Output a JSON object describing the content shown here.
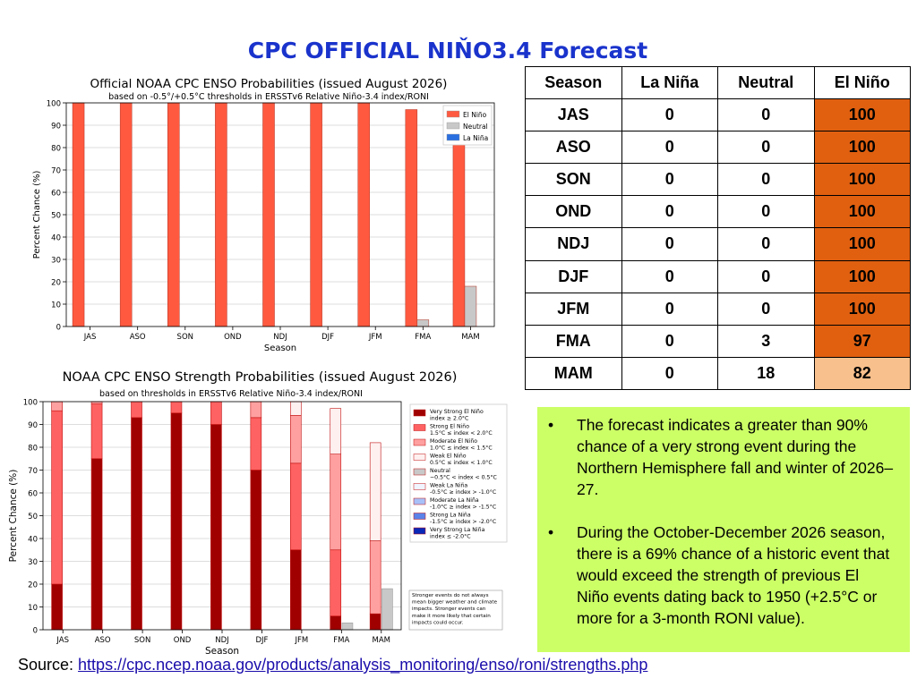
{
  "slide_title": "CPC OFFICIAL NIŇO3.4 Forecast",
  "colors": {
    "title": "#1a33cc",
    "el_nino": "#e06010",
    "el_nino_light": "#f8c08c",
    "note_background": "#ccff66"
  },
  "chart_data": [
    {
      "type": "bar",
      "title": "Official NOAA CPC ENSO Probabilities (issued August 2026)",
      "subtitle": "based on -0.5°/+0.5°C thresholds in ERSSTv6 Relative Niño-3.4 index/RONI",
      "xlabel": "Season",
      "ylabel": "Percent Chance (%)",
      "ylim": [
        0,
        100
      ],
      "yticks": [
        0,
        10,
        20,
        30,
        40,
        50,
        60,
        70,
        80,
        90,
        100
      ],
      "grid": true,
      "legend_position": "top-right",
      "categories": [
        "JAS",
        "ASO",
        "SON",
        "OND",
        "NDJ",
        "DJF",
        "JFM",
        "FMA",
        "MAM"
      ],
      "series": [
        {
          "name": "El Niño",
          "color": "#ff5a40",
          "values": [
            100,
            100,
            100,
            100,
            100,
            100,
            100,
            97,
            82
          ]
        },
        {
          "name": "Neutral",
          "color": "#c8c8c8",
          "values": [
            0,
            0,
            0,
            0,
            0,
            0,
            0,
            3,
            18
          ]
        },
        {
          "name": "La Niña",
          "color": "#2a6fe0",
          "values": [
            0,
            0,
            0,
            0,
            0,
            0,
            0,
            0,
            0
          ]
        }
      ]
    },
    {
      "type": "stacked-bar",
      "title": "NOAA CPC ENSO Strength Probabilities (issued August 2026)",
      "subtitle": "based on thresholds in ERSSTv6 Relative Niño-3.4 index/RONI",
      "xlabel": "Season",
      "ylabel": "Percent Chance (%)",
      "ylim": [
        0,
        100
      ],
      "yticks": [
        0,
        10,
        20,
        30,
        40,
        50,
        60,
        70,
        80,
        90,
        100
      ],
      "grid": true,
      "legend_position": "right",
      "categories": [
        "JAS",
        "ASO",
        "SON",
        "OND",
        "NDJ",
        "DJF",
        "JFM",
        "FMA",
        "MAM"
      ],
      "series": [
        {
          "name": "Very Strong El Niño",
          "label2": "index ≥ 2.0°C",
          "color": "#a00000",
          "values": [
            20,
            75,
            93,
            95,
            90,
            70,
            35,
            6,
            7
          ]
        },
        {
          "name": "Strong El Niño",
          "label2": "1.5°C ≤ index < 2.0°C",
          "color": "#ff6262",
          "values": [
            76,
            24,
            7,
            5,
            10,
            23,
            38,
            29,
            0
          ]
        },
        {
          "name": "Moderate El Niño",
          "label2": "1.0°C ≤ index < 1.5°C",
          "color": "#ffa0a0",
          "values": [
            4,
            1,
            0,
            0,
            0,
            7,
            21,
            42,
            32
          ]
        },
        {
          "name": "Weak El Niño",
          "label2": "0.5°C ≤ index < 1.0°C",
          "color": "#fff0f0",
          "values": [
            0,
            0,
            0,
            0,
            0,
            0,
            6,
            20,
            43
          ]
        },
        {
          "name": "Neutral",
          "label2": "−0.5°C < index < 0.5°C",
          "color": "#c8c8c8",
          "values": [
            0,
            0,
            0,
            0,
            0,
            0,
            0,
            3,
            18
          ]
        },
        {
          "name": "Weak La Niña",
          "label2": "-0.5°C ≥ index > -1.0°C",
          "color": "#f0f4ff",
          "values": [
            0,
            0,
            0,
            0,
            0,
            0,
            0,
            0,
            0
          ]
        },
        {
          "name": "Moderate La Niña",
          "label2": "-1.0°C ≥ index > -1.5°C",
          "color": "#a8c0f8",
          "values": [
            0,
            0,
            0,
            0,
            0,
            0,
            0,
            0,
            0
          ]
        },
        {
          "name": "Strong La Niña",
          "label2": "-1.5°C ≥ index > -2.0°C",
          "color": "#5a82e8",
          "values": [
            0,
            0,
            0,
            0,
            0,
            0,
            0,
            0,
            0
          ]
        },
        {
          "name": "Very Strong La Niña",
          "label2": "index ≤ -2.0°C",
          "color": "#0a28b8",
          "values": [
            0,
            0,
            0,
            0,
            0,
            0,
            0,
            0,
            0
          ]
        }
      ],
      "note": [
        "Stronger events do not always",
        "mean bigger weather and climate",
        "impacts. Stronger events can",
        "make it more likely that certain",
        "impacts could occur."
      ]
    }
  ],
  "table": {
    "headers": [
      "Season",
      "La Niña",
      "Neutral",
      "El Niño"
    ],
    "rows": [
      {
        "season": "JAS",
        "la_nina": "0",
        "neutral": "0",
        "el_nino": "100",
        "el_nino_value": 100
      },
      {
        "season": "ASO",
        "la_nina": "0",
        "neutral": "0",
        "el_nino": "100",
        "el_nino_value": 100
      },
      {
        "season": "SON",
        "la_nina": "0",
        "neutral": "0",
        "el_nino": "100",
        "el_nino_value": 100
      },
      {
        "season": "OND",
        "la_nina": "0",
        "neutral": "0",
        "el_nino": "100",
        "el_nino_value": 100
      },
      {
        "season": "NDJ",
        "la_nina": "0",
        "neutral": "0",
        "el_nino": "100",
        "el_nino_value": 100
      },
      {
        "season": "DJF",
        "la_nina": "0",
        "neutral": "0",
        "el_nino": "100",
        "el_nino_value": 100
      },
      {
        "season": "JFM",
        "la_nina": "0",
        "neutral": "0",
        "el_nino": "100",
        "el_nino_value": 100
      },
      {
        "season": "FMA",
        "la_nina": "0",
        "neutral": "3",
        "el_nino": "97",
        "el_nino_value": 97
      },
      {
        "season": "MAM",
        "la_nina": "0",
        "neutral": "18",
        "el_nino": "82",
        "el_nino_value": 82
      }
    ]
  },
  "bullets": [
    "The forecast indicates a greater than 90% chance of a very strong event during the Northern Hemisphere fall and winter of 2026–27.",
    "During the October-December 2026 season, there is a 69% chance of a historic event that would exceed the strength of previous El Niño events dating back to 1950 (+2.5°C or more for a 3-month RONI value)."
  ],
  "source": {
    "label": "Source: ",
    "link_text": "https://cpc.ncep.noaa.gov/products/analysis_monitoring/enso/roni/strengths.php"
  }
}
